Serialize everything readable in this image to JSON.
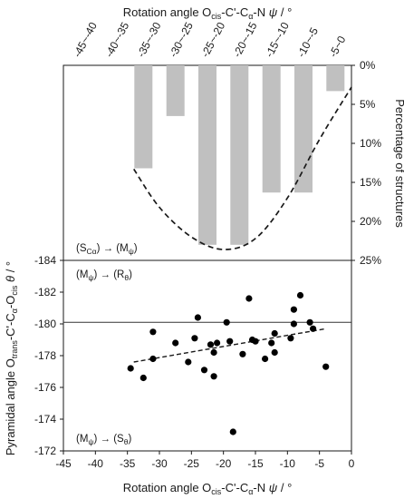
{
  "chart_data": [
    {
      "type": "bar",
      "title": "",
      "xlabel": "Rotation angle O cis-C'-Cα-N ψ / °",
      "xlabel_parts": [
        "Rotation angle O",
        "cis",
        "-C'-C",
        "α",
        "-N ",
        "ψ",
        " / °"
      ],
      "ylabel": "Percentage of structures",
      "categories": [
        "-45~-40",
        "-40~-35",
        "-35~-30",
        "-30~-25",
        "-25~-20",
        "-20~-15",
        "-15~-10",
        "-10~-5",
        "-5~0"
      ],
      "values": [
        0,
        0,
        13.2,
        6.5,
        23.0,
        23.0,
        16.3,
        16.3,
        3.3
      ],
      "ylim": [
        0,
        25
      ],
      "y_ticks": [
        "0%",
        "5%",
        "10%",
        "15%",
        "20%",
        "25%"
      ],
      "y_reversed": true,
      "bar_color": "#c0c0c0",
      "trend_line": {
        "style": "dashed",
        "x": [
          -34,
          -30,
          -25,
          -20,
          -15,
          -10,
          -5,
          0
        ],
        "y": [
          13.3,
          18.2,
          22.0,
          23.6,
          22.2,
          17.0,
          9.5,
          2.8
        ]
      },
      "annotation": "(S Cα) → (Mψ)",
      "annotation_parts": [
        "(S",
        "Cα",
        ") → (M",
        "ψ",
        ")"
      ]
    },
    {
      "type": "scatter",
      "title": "",
      "xlabel": "Rotation angle O cis-C'-Cα-N ψ / °",
      "xlabel_parts": [
        "Rotation angle O",
        "cis",
        "-C'-C",
        "α",
        "-N ",
        "ψ",
        " / °"
      ],
      "ylabel": "Pyramidal angle O trans-C'-Cα-O cis θ / °",
      "ylabel_parts": [
        "Pyramidal angle O",
        "trans",
        "-C'-C",
        "α",
        "-O",
        "cis",
        " θ",
        " / °"
      ],
      "xlim": [
        -45,
        0
      ],
      "x_ticks": [
        -45,
        -40,
        -35,
        -30,
        -25,
        -20,
        -15,
        -10,
        -5,
        0
      ],
      "ylim": [
        -184,
        -172
      ],
      "y_ticks": [
        -184,
        -182,
        -180,
        -178,
        -176,
        -174,
        -172
      ],
      "y_reversed": true,
      "reference_line": -180.1,
      "points": [
        {
          "x": -34.5,
          "y": -177.2
        },
        {
          "x": -32.5,
          "y": -176.6
        },
        {
          "x": -31.0,
          "y": -177.8
        },
        {
          "x": -31.0,
          "y": -179.5
        },
        {
          "x": -27.5,
          "y": -178.8
        },
        {
          "x": -25.5,
          "y": -177.6
        },
        {
          "x": -24.5,
          "y": -179.1
        },
        {
          "x": -24.0,
          "y": -180.4
        },
        {
          "x": -23.0,
          "y": -177.1
        },
        {
          "x": -22.0,
          "y": -178.7
        },
        {
          "x": -21.5,
          "y": -176.7
        },
        {
          "x": -21.5,
          "y": -178.2
        },
        {
          "x": -21.0,
          "y": -178.8
        },
        {
          "x": -19.5,
          "y": -180.1
        },
        {
          "x": -19.0,
          "y": -178.9
        },
        {
          "x": -18.5,
          "y": -173.2
        },
        {
          "x": -17.0,
          "y": -178.1
        },
        {
          "x": -16.0,
          "y": -181.6
        },
        {
          "x": -15.5,
          "y": -179.0
        },
        {
          "x": -15.0,
          "y": -178.9
        },
        {
          "x": -13.5,
          "y": -177.8
        },
        {
          "x": -12.5,
          "y": -178.8
        },
        {
          "x": -12.0,
          "y": -179.4
        },
        {
          "x": -12.0,
          "y": -178.2
        },
        {
          "x": -9.5,
          "y": -179.1
        },
        {
          "x": -9.0,
          "y": -180.9
        },
        {
          "x": -9.0,
          "y": -180.0
        },
        {
          "x": -8.0,
          "y": -181.8
        },
        {
          "x": -6.5,
          "y": -180.1
        },
        {
          "x": -6.0,
          "y": -179.7
        },
        {
          "x": -4.0,
          "y": -177.3
        }
      ],
      "trend_line": {
        "style": "dashed",
        "x": [
          -34,
          -4
        ],
        "y": [
          -177.6,
          -179.7
        ]
      },
      "annotation_top": "(Mψ) → (Rθ)",
      "annotation_top_parts": [
        "(M",
        "ψ",
        ") → (R",
        "θ",
        ")"
      ],
      "annotation_bottom": "(Mψ) → (Sθ)",
      "annotation_bottom_parts": [
        "(M",
        "ψ",
        ") → (S",
        "θ",
        ")"
      ]
    }
  ]
}
